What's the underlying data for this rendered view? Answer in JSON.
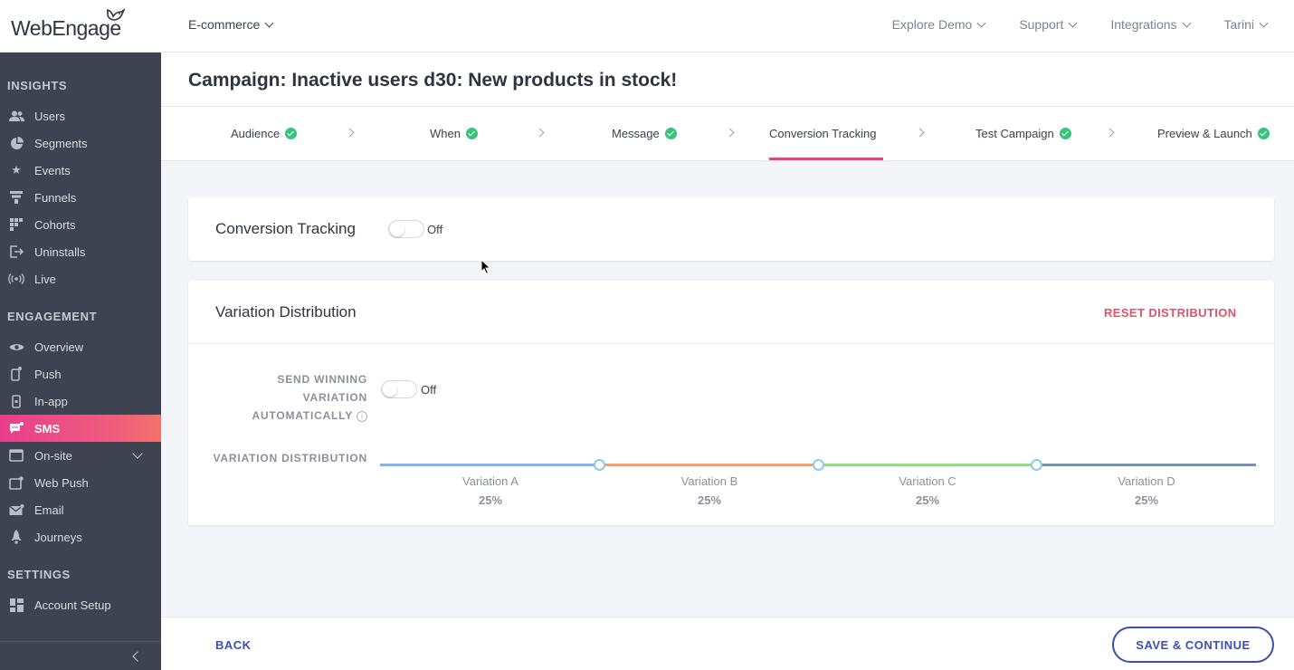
{
  "brand": {
    "logo_text": "WebEngage",
    "accent": "#e83e8c",
    "primary": "#3c4fb0"
  },
  "topbar": {
    "project": "E-commerce",
    "nav": [
      "Explore Demo",
      "Support",
      "Integrations",
      "Tarini"
    ]
  },
  "sidebar": {
    "sections": [
      {
        "title": "INSIGHTS",
        "items": [
          {
            "label": "Users",
            "icon": "users-icon"
          },
          {
            "label": "Segments",
            "icon": "pie-chart-icon"
          },
          {
            "label": "Events",
            "icon": "star-icon"
          },
          {
            "label": "Funnels",
            "icon": "funnel-icon"
          },
          {
            "label": "Cohorts",
            "icon": "grid-icon"
          },
          {
            "label": "Uninstalls",
            "icon": "exit-icon"
          },
          {
            "label": "Live",
            "icon": "broadcast-icon"
          }
        ]
      },
      {
        "title": "ENGAGEMENT",
        "items": [
          {
            "label": "Overview",
            "icon": "eye-icon"
          },
          {
            "label": "Push",
            "icon": "mobile-push-icon"
          },
          {
            "label": "In-app",
            "icon": "mobile-icon"
          },
          {
            "label": "SMS",
            "icon": "sms-icon",
            "active": true
          },
          {
            "label": "On-site",
            "icon": "onsite-icon"
          },
          {
            "label": "Web Push",
            "icon": "web-push-icon"
          },
          {
            "label": "Email",
            "icon": "envelope-icon"
          },
          {
            "label": "Journeys",
            "icon": "rocket-icon"
          }
        ]
      },
      {
        "title": "SETTINGS",
        "items": [
          {
            "label": "Account Setup",
            "icon": "dashboard-icon"
          }
        ]
      }
    ]
  },
  "page": {
    "title": "Campaign: Inactive users d30: New products in stock!"
  },
  "steps": [
    {
      "label": "Audience",
      "done": true
    },
    {
      "label": "When",
      "done": true
    },
    {
      "label": "Message",
      "done": true
    },
    {
      "label": "Conversion Tracking",
      "done": false,
      "active": true
    },
    {
      "label": "Test Campaign",
      "done": true
    },
    {
      "label": "Preview & Launch",
      "done": true
    }
  ],
  "conversion": {
    "title": "Conversion Tracking",
    "toggle_state": "Off"
  },
  "distribution": {
    "title": "Variation Distribution",
    "reset": "RESET DISTRIBUTION",
    "winning_label_lines": [
      "SEND WINNING",
      "VARIATION",
      "AUTOMATICALLY"
    ],
    "winning_toggle_state": "Off",
    "dist_label": "VARIATION DISTRIBUTION",
    "variations": [
      {
        "name": "Variation A",
        "pct": "25%",
        "color": "#7fb4e6"
      },
      {
        "name": "Variation B",
        "pct": "25%",
        "color": "#f0a26a"
      },
      {
        "name": "Variation C",
        "pct": "25%",
        "color": "#92dd7f"
      },
      {
        "name": "Variation D",
        "pct": "25%",
        "color": "#7890a8"
      }
    ]
  },
  "footer": {
    "back": "BACK",
    "save": "SAVE & CONTINUE"
  }
}
